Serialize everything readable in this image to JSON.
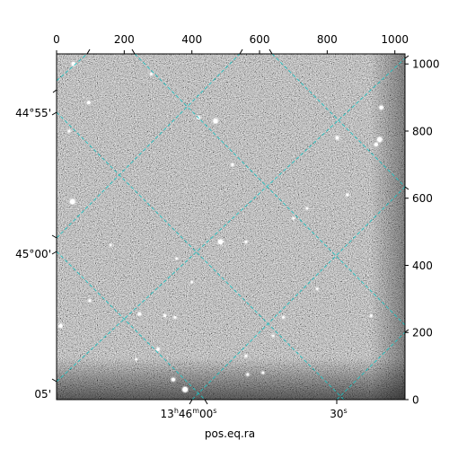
{
  "chart_data": {
    "type": "heatmap",
    "description_kind": "astronomical image with RA/Dec world-coordinate grid overlay",
    "colormap": "gray",
    "grid_color": "#20c0c0",
    "pixel_axes": {
      "x": {
        "range": [
          0,
          1030
        ],
        "ticks": [
          0,
          200,
          400,
          600,
          800,
          1000
        ]
      },
      "y": {
        "range": [
          0,
          1030
        ],
        "ticks": [
          0,
          200,
          400,
          600,
          800,
          1000
        ]
      }
    },
    "world_axes": {
      "xlabel": "pos.eq.ra",
      "ra_ticks": [
        {
          "h": "13",
          "m": "46",
          "s": "00"
        },
        {
          "s": "30"
        }
      ],
      "dec_ticks": [
        "44°55'",
        "45°00'",
        "05'"
      ]
    },
    "sources": [
      [
        50,
        1000,
        2.2
      ],
      [
        95,
        885,
        1.8
      ],
      [
        37,
        800,
        1.5
      ],
      [
        280,
        970,
        1.4
      ],
      [
        420,
        840,
        1.8
      ],
      [
        470,
        830,
        2.6
      ],
      [
        520,
        700,
        1.5
      ],
      [
        830,
        780,
        2.0
      ],
      [
        955,
        775,
        2.8
      ],
      [
        945,
        760,
        2.0
      ],
      [
        960,
        870,
        2.2
      ],
      [
        860,
        610,
        1.5
      ],
      [
        47,
        590,
        2.8
      ],
      [
        98,
        295,
        1.4
      ],
      [
        12,
        220,
        2.2
      ],
      [
        245,
        255,
        1.8
      ],
      [
        320,
        250,
        1.6
      ],
      [
        350,
        245,
        1.4
      ],
      [
        485,
        470,
        2.8
      ],
      [
        560,
        470,
        1.3
      ],
      [
        400,
        350,
        1.2
      ],
      [
        670,
        245,
        1.4
      ],
      [
        565,
        75,
        1.5
      ],
      [
        610,
        80,
        1.3
      ],
      [
        345,
        60,
        2.0
      ],
      [
        560,
        130,
        1.4
      ],
      [
        300,
        150,
        1.8
      ],
      [
        770,
        330,
        1.2
      ],
      [
        930,
        250,
        1.4
      ],
      [
        700,
        540,
        1.3
      ],
      [
        160,
        460,
        1.2
      ],
      [
        640,
        190,
        1.2
      ],
      [
        355,
        420,
        1.2
      ],
      [
        740,
        570,
        1.3
      ],
      [
        235,
        120,
        1.2
      ],
      [
        380,
        30,
        3.0
      ]
    ]
  }
}
